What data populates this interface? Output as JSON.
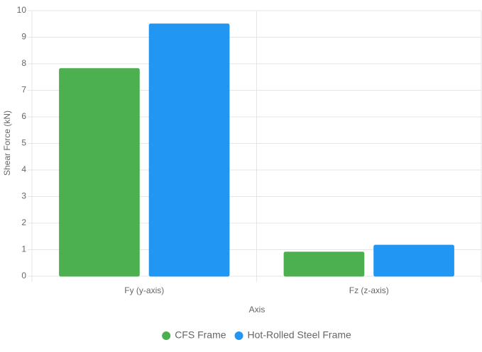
{
  "chart_data": {
    "type": "bar",
    "x_label": "Axis",
    "y_label": "Shear Force (kN)",
    "categories": [
      "Fy (y-axis)",
      "Fz (z-axis)"
    ],
    "series": [
      {
        "name": "CFS Frame",
        "color": "#4caf50",
        "values": [
          7.82,
          0.91
        ]
      },
      {
        "name": "Hot-Rolled Steel Frame",
        "color": "#2196f3",
        "values": [
          9.5,
          1.17
        ]
      }
    ],
    "ylim": [
      0,
      10
    ],
    "yticks": [
      0,
      1,
      2,
      3,
      4,
      5,
      6,
      7,
      8,
      9,
      10
    ],
    "grid": true
  }
}
